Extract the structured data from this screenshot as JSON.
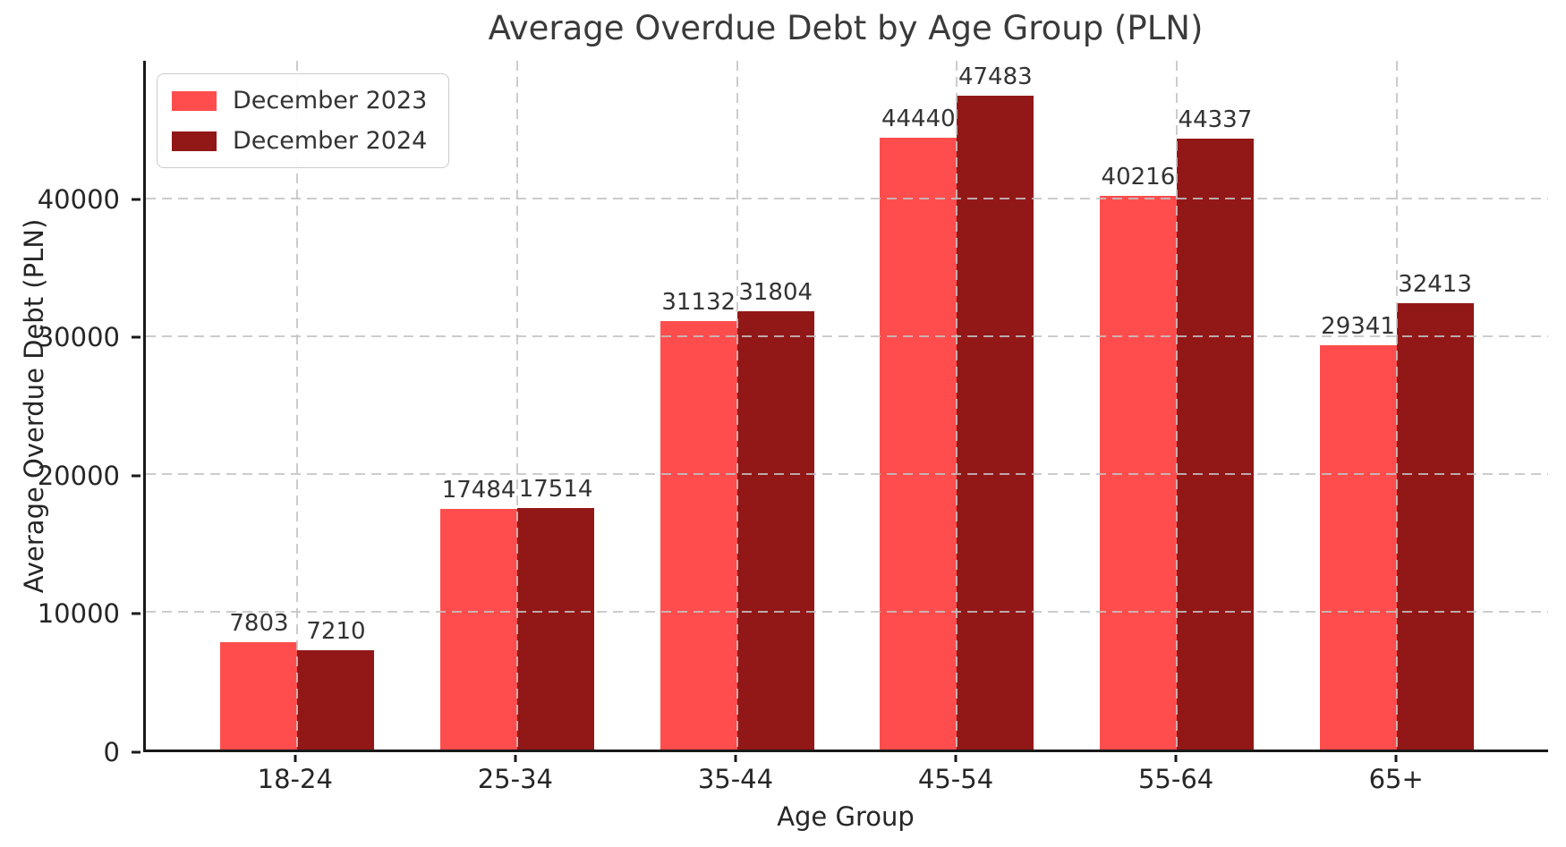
{
  "chart_data": {
    "type": "bar",
    "title": "Average Overdue Debt by Age Group (PLN)",
    "xlabel": "Age Group",
    "ylabel": "Average Overdue Debt (PLN)",
    "categories": [
      "18-24",
      "25-34",
      "35-44",
      "45-54",
      "55-64",
      "65+"
    ],
    "series": [
      {
        "name": "December 2023",
        "color": "#FF4D4D",
        "values": [
          7803,
          17484,
          31132,
          44440,
          40216,
          29341
        ]
      },
      {
        "name": "December 2024",
        "color": "#921717",
        "values": [
          7210,
          17514,
          31804,
          47483,
          44337,
          32413
        ]
      }
    ],
    "ylim": [
      0,
      50000
    ],
    "yticks": [
      0,
      10000,
      20000,
      30000,
      40000
    ],
    "grid": "dashed, both axes, drawn above bars",
    "legend_position": "upper left",
    "value_labels": "shown above each bar"
  },
  "colors": {
    "series_2023": "#FF4D4D",
    "series_2024": "#921717",
    "grid": "#c3c3c3",
    "spine": "#1a1a1a",
    "text": "#262626",
    "background": "#ffffff"
  }
}
